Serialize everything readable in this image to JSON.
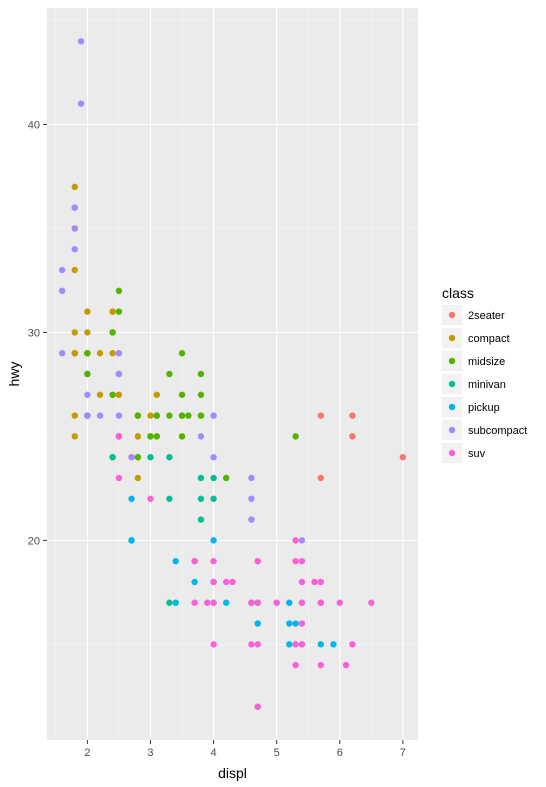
{
  "chart_data": {
    "type": "scatter",
    "title": "",
    "xlabel": "displ",
    "ylabel": "hwy",
    "xlim": [
      1.36,
      7.24
    ],
    "ylim": [
      10.4,
      45.6
    ],
    "x_ticks": [
      2,
      3,
      4,
      5,
      6,
      7
    ],
    "x_tick_labels": [
      "2",
      "3",
      "4",
      "5",
      "6",
      "7"
    ],
    "y_ticks": [
      20,
      30,
      40
    ],
    "y_tick_labels": [
      "20",
      "30",
      "40"
    ],
    "grid": true,
    "legend": {
      "title": "class",
      "position": "right"
    },
    "colors": {
      "panel_background": "#ebebeb",
      "grid_major": "#ffffff",
      "grid_minor": "#f5f5f5",
      "tick_text": "#4d4d4d"
    },
    "series": [
      {
        "name": "2seater",
        "color": "#F8766D",
        "points": [
          [
            5.7,
            26
          ],
          [
            5.7,
            23
          ],
          [
            6.2,
            26
          ],
          [
            6.2,
            25
          ],
          [
            7.0,
            24
          ]
        ]
      },
      {
        "name": "compact",
        "color": "#C49A00",
        "points": [
          [
            1.8,
            29
          ],
          [
            1.8,
            29
          ],
          [
            2.0,
            31
          ],
          [
            2.0,
            30
          ],
          [
            2.8,
            26
          ],
          [
            2.8,
            26
          ],
          [
            3.1,
            27
          ],
          [
            1.8,
            26
          ],
          [
            1.8,
            25
          ],
          [
            2.0,
            28
          ],
          [
            2.0,
            29
          ],
          [
            2.8,
            25
          ],
          [
            2.8,
            24
          ],
          [
            3.1,
            25
          ],
          [
            2.4,
            27
          ],
          [
            2.4,
            31
          ],
          [
            2.5,
            27
          ],
          [
            2.5,
            29
          ],
          [
            2.2,
            27
          ],
          [
            2.2,
            29
          ],
          [
            2.4,
            31
          ],
          [
            2.4,
            29
          ],
          [
            3.0,
            26
          ],
          [
            1.8,
            37
          ],
          [
            1.8,
            35
          ],
          [
            1.8,
            33
          ],
          [
            1.8,
            29
          ],
          [
            2.0,
            26
          ],
          [
            2.8,
            23
          ],
          [
            2.5,
            25
          ],
          [
            2.0,
            29
          ],
          [
            1.8,
            30
          ],
          [
            2.4,
            24
          ]
        ]
      },
      {
        "name": "midsize",
        "color": "#53B400",
        "points": [
          [
            2.4,
            30
          ],
          [
            2.5,
            32
          ],
          [
            2.5,
            31
          ],
          [
            3.3,
            26
          ],
          [
            3.3,
            28
          ],
          [
            3.5,
            29
          ],
          [
            3.5,
            26
          ],
          [
            3.1,
            26
          ],
          [
            3.8,
            27
          ],
          [
            3.8,
            26
          ],
          [
            3.8,
            28
          ],
          [
            5.3,
            25
          ],
          [
            2.5,
            28
          ],
          [
            2.4,
            30
          ],
          [
            3.0,
            25
          ],
          [
            3.1,
            25
          ],
          [
            3.5,
            27
          ],
          [
            3.5,
            25
          ],
          [
            4.2,
            23
          ],
          [
            2.0,
            29
          ],
          [
            2.0,
            28
          ],
          [
            2.0,
            26
          ],
          [
            3.6,
            26
          ],
          [
            2.4,
            27
          ],
          [
            2.5,
            25
          ],
          [
            3.5,
            26
          ],
          [
            2.8,
            26
          ],
          [
            3.0,
            25
          ],
          [
            3.1,
            26
          ],
          [
            2.8,
            24
          ],
          [
            3.8,
            26
          ],
          [
            2.0,
            29
          ]
        ]
      },
      {
        "name": "minivan",
        "color": "#00C094",
        "points": [
          [
            2.4,
            24
          ],
          [
            3.0,
            24
          ],
          [
            3.3,
            22
          ],
          [
            3.3,
            24
          ],
          [
            3.8,
            22
          ],
          [
            3.8,
            21
          ],
          [
            3.8,
            23
          ],
          [
            4.0,
            23
          ],
          [
            3.3,
            17
          ],
          [
            4.0,
            22
          ]
        ]
      },
      {
        "name": "pickup",
        "color": "#00B6EB",
        "points": [
          [
            2.7,
            20
          ],
          [
            2.7,
            20
          ],
          [
            2.7,
            22
          ],
          [
            3.4,
            17
          ],
          [
            3.4,
            19
          ],
          [
            4.0,
            20
          ],
          [
            4.7,
            16
          ],
          [
            4.7,
            17
          ],
          [
            5.2,
            15
          ],
          [
            5.2,
            16
          ],
          [
            5.7,
            17
          ],
          [
            5.9,
            15
          ],
          [
            3.7,
            18
          ],
          [
            4.0,
            18
          ],
          [
            4.7,
            17
          ],
          [
            4.7,
            16
          ],
          [
            4.7,
            17
          ],
          [
            5.2,
            17
          ],
          [
            5.7,
            15
          ],
          [
            4.6,
            17
          ],
          [
            5.4,
            17
          ],
          [
            5.4,
            15
          ],
          [
            4.0,
            17
          ],
          [
            4.2,
            17
          ],
          [
            4.6,
            17
          ],
          [
            5.3,
            16
          ]
        ]
      },
      {
        "name": "subcompact",
        "color": "#A58AFF",
        "points": [
          [
            1.6,
            33
          ],
          [
            1.6,
            32
          ],
          [
            1.6,
            29
          ],
          [
            1.8,
            34
          ],
          [
            1.8,
            36
          ],
          [
            1.8,
            36
          ],
          [
            1.8,
            35
          ],
          [
            2.0,
            27
          ],
          [
            2.0,
            26
          ],
          [
            2.0,
            26
          ],
          [
            1.9,
            44
          ],
          [
            1.9,
            41
          ],
          [
            2.2,
            26
          ],
          [
            2.5,
            26
          ],
          [
            2.5,
            29
          ],
          [
            2.5,
            28
          ],
          [
            2.5,
            25
          ],
          [
            2.7,
            24
          ],
          [
            3.8,
            25
          ],
          [
            4.0,
            26
          ],
          [
            4.0,
            24
          ],
          [
            4.6,
            23
          ],
          [
            4.6,
            22
          ],
          [
            4.6,
            21
          ],
          [
            5.4,
            20
          ],
          [
            2.7,
            24
          ],
          [
            4.6,
            17
          ]
        ]
      },
      {
        "name": "suv",
        "color": "#FB61D7",
        "points": [
          [
            5.3,
            20
          ],
          [
            5.3,
            15
          ],
          [
            5.7,
            17
          ],
          [
            6.5,
            17
          ],
          [
            5.3,
            19
          ],
          [
            5.7,
            18
          ],
          [
            6.0,
            17
          ],
          [
            5.7,
            18
          ],
          [
            6.1,
            14
          ],
          [
            4.7,
            17
          ],
          [
            4.7,
            19
          ],
          [
            4.7,
            15
          ],
          [
            4.7,
            17
          ],
          [
            5.7,
            14
          ],
          [
            2.5,
            23
          ],
          [
            3.0,
            22
          ],
          [
            3.7,
            17
          ],
          [
            3.7,
            19
          ],
          [
            3.9,
            17
          ],
          [
            4.0,
            15
          ],
          [
            4.0,
            17
          ],
          [
            4.3,
            18
          ],
          [
            4.6,
            17
          ],
          [
            4.6,
            15
          ],
          [
            5.0,
            17
          ],
          [
            5.4,
            15
          ],
          [
            5.4,
            18
          ],
          [
            5.4,
            19
          ],
          [
            5.4,
            17
          ],
          [
            5.6,
            18
          ],
          [
            6.2,
            15
          ],
          [
            4.0,
            19
          ],
          [
            4.7,
            12
          ],
          [
            4.7,
            12
          ],
          [
            5.3,
            14
          ],
          [
            4.0,
            18
          ],
          [
            4.6,
            17
          ],
          [
            5.0,
            17
          ],
          [
            5.4,
            16
          ],
          [
            5.7,
            17
          ],
          [
            3.7,
            19
          ],
          [
            4.7,
            19
          ],
          [
            2.5,
            25
          ],
          [
            4.2,
            18
          ]
        ]
      }
    ]
  }
}
